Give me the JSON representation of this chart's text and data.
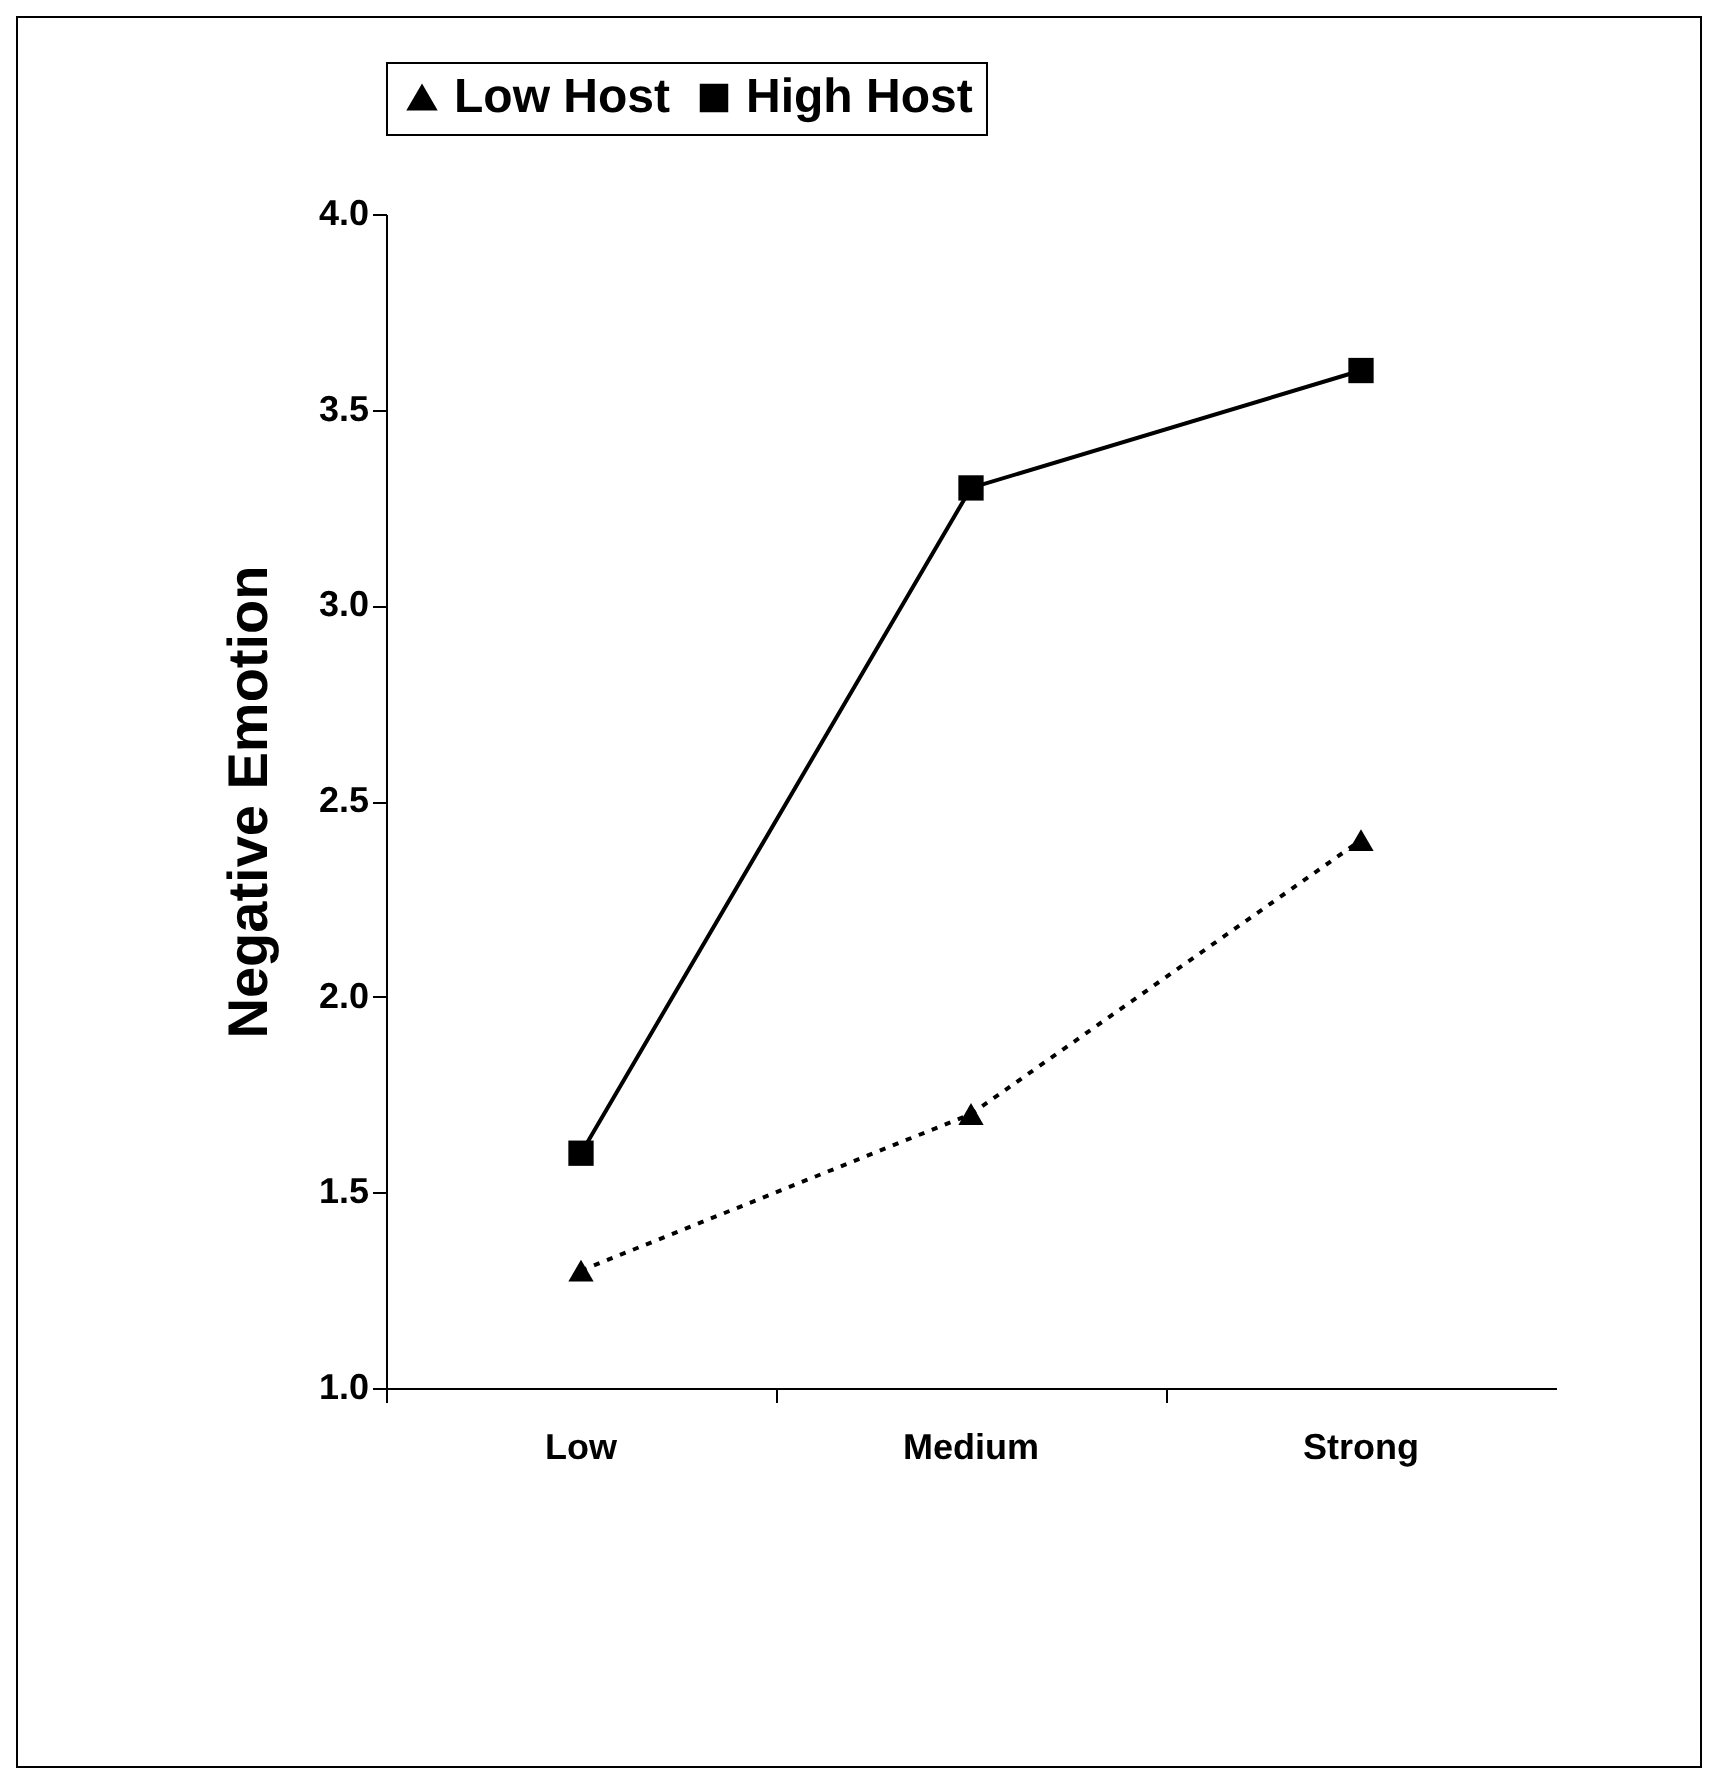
{
  "chart_data": {
    "type": "line",
    "ylabel": "Negative Emotion",
    "categories": [
      "Low",
      "Medium",
      "Strong"
    ],
    "series": [
      {
        "name": "Low Host",
        "color": "#000000",
        "values": [
          1.3,
          1.7,
          2.4
        ],
        "marker": "triangle",
        "line_style": "dotted"
      },
      {
        "name": "High Host",
        "color": "#000000",
        "values": [
          1.6,
          3.3,
          3.6
        ],
        "marker": "square",
        "line_style": "solid"
      }
    ],
    "ylim": [
      1.0,
      4.0
    ],
    "yticks": [
      {
        "value": 1.0,
        "label": "1.0"
      },
      {
        "value": 1.5,
        "label": "1.5"
      },
      {
        "value": 2.0,
        "label": "2.0"
      },
      {
        "value": 2.5,
        "label": "2.5"
      },
      {
        "value": 3.0,
        "label": "3.0"
      },
      {
        "value": 3.5,
        "label": "3.5"
      },
      {
        "value": 4.0,
        "label": "4.0"
      }
    ],
    "grid": false,
    "legend": "top"
  }
}
